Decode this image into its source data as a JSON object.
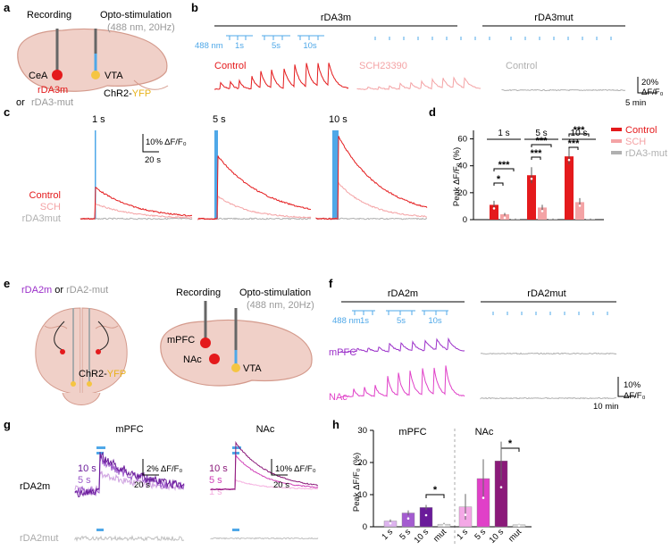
{
  "colors": {
    "red": "#e41a1c",
    "pink": "#f4a3a5",
    "gray": "#b0b0b0",
    "blue": "#4fa8e8",
    "purple": "#6a1b9a",
    "violet": "#9b59c9",
    "magenta": "#e040c8",
    "lilac": "#cfa3e0",
    "brain": "#f0d0c8",
    "brainStroke": "#d49a8c",
    "yellow": "#f5c542"
  },
  "panels": {
    "a": "a",
    "b": "b",
    "c": "c",
    "d": "d",
    "e": "e",
    "f": "f",
    "g": "g",
    "h": "h"
  },
  "a": {
    "recording": "Recording",
    "opto": "Opto-stimulation",
    "optoParams": "(488 nm, 20Hz)",
    "cea": "CeA",
    "vta": "VTA",
    "sensor": "rDA3m",
    "or": "or",
    "mut": "rDA3-mut",
    "chr2": "ChR2-",
    "yfp": "YFP"
  },
  "b": {
    "title_m": "rDA3m",
    "title_mut": "rDA3mut",
    "nm": "488 nm",
    "d1": "1s",
    "d5": "5s",
    "d10": "10s",
    "control": "Control",
    "sch": "SCH23390",
    "mutControl": "Control",
    "scaleY": "20%",
    "scaleYunit": "ΔF/F₀",
    "scaleX": "5 min"
  },
  "c": {
    "t1": "1 s",
    "t5": "5 s",
    "t10": "10 s",
    "scaleY": "10% ΔF/F₀",
    "scaleX": "20 s",
    "legControl": "Control",
    "legSCH": "SCH",
    "legMut": "rDA3mut"
  },
  "d": {
    "ylabel": "Peak ΔF/F₀ (%)",
    "ticks": [
      "0",
      "20",
      "40",
      "60"
    ],
    "groups": [
      "1 s",
      "5 s",
      "10 s"
    ],
    "sig": [
      "*",
      "***",
      "***",
      "***",
      "***",
      "***"
    ],
    "legend": [
      "Control",
      "SCH",
      "rDA3-mut"
    ]
  },
  "chart_data": [
    {
      "type": "bar",
      "panel": "d",
      "title": "",
      "ylabel": "Peak ΔF/F0 (%)",
      "ylim": [
        0,
        65
      ],
      "categories": [
        "1 s",
        "5 s",
        "10 s"
      ],
      "series": [
        {
          "name": "Control",
          "values": [
            11,
            33,
            47
          ],
          "errors": [
            3,
            6,
            6
          ]
        },
        {
          "name": "SCH",
          "values": [
            4,
            9,
            13
          ],
          "errors": [
            1,
            2,
            3
          ]
        },
        {
          "name": "rDA3-mut",
          "values": [
            0.5,
            0.5,
            0.5
          ],
          "errors": [
            0.3,
            0.3,
            0.3
          ]
        }
      ]
    },
    {
      "type": "bar",
      "panel": "h",
      "ylabel": "Peak ΔF/F0 (%)",
      "ylim": [
        0,
        30
      ],
      "regions": [
        "mPFC",
        "NAc"
      ],
      "categories": [
        "1 s",
        "5 s",
        "10 s",
        "mut",
        "1 s",
        "5 s",
        "10 s",
        "mut"
      ],
      "values": [
        1.8,
        4.3,
        6.0,
        0.8,
        6.2,
        15,
        20.5,
        0.6
      ],
      "errors": [
        0.5,
        0.8,
        0.8,
        0.4,
        4,
        6,
        6,
        0.3
      ]
    }
  ],
  "e": {
    "sensor": "rDA2m",
    "or": "or",
    "mut": "rDA2-mut",
    "chr2": "ChR2-",
    "yfp": "YFP",
    "recording": "Recording",
    "opto": "Opto-stimulation",
    "optoParams": "(488 nm, 20Hz)",
    "mpfc": "mPFC",
    "nac": "NAc",
    "vta": "VTA"
  },
  "f": {
    "title_m": "rDA2m",
    "title_mut": "rDA2mut",
    "nm": "488 nm",
    "d1": "1s",
    "d5": "5s",
    "d10": "10s",
    "mpfc": "mPFC",
    "nac": "NAc",
    "scaleY": "10%",
    "scaleYunit": "ΔF/F₀",
    "scaleX": "10 min"
  },
  "g": {
    "mpfc": "mPFC",
    "nac": "NAc",
    "rowM": "rDA2m",
    "rowMut": "rDA2mut",
    "t10": "10 s",
    "t5": "5 s",
    "t1": "1 s",
    "scaleY1": "2% ΔF/F₀",
    "scaleY2": "10% ΔF/F₀",
    "scaleX": "20 s"
  },
  "h": {
    "ylabel": "Peak ΔF/F₀ (%)",
    "ticks": [
      "0",
      "10",
      "20",
      "30"
    ],
    "mpfc": "mPFC",
    "nac": "NAc",
    "labels": [
      "1 s",
      "5 s",
      "10 s",
      "mut",
      "1 s",
      "5 s",
      "10 s",
      "mut"
    ],
    "sig": [
      "*",
      "*"
    ]
  }
}
